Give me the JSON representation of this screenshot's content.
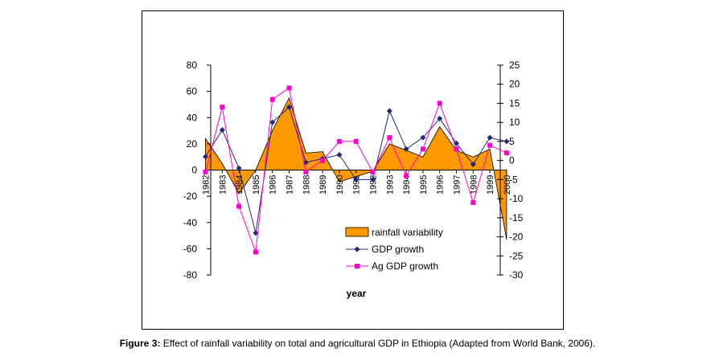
{
  "chart_data": {
    "type": "area+line",
    "categories": [
      "1982",
      "1983",
      "1984",
      "1985",
      "1986",
      "1987",
      "1988",
      "1989",
      "1990",
      "1991",
      "1992",
      "1993",
      "1994",
      "1995",
      "1996",
      "1997",
      "1998",
      "1999",
      "2000"
    ],
    "series": [
      {
        "name": "rainfall variability",
        "type": "area",
        "axis": "left",
        "color": "#ff9900",
        "values": [
          24,
          5,
          -18,
          0,
          30,
          55,
          13,
          14,
          -9,
          -5,
          -1,
          20,
          15,
          10,
          33,
          15,
          10,
          16,
          -53
        ]
      },
      {
        "name": "GDP growth",
        "type": "line",
        "axis": "right",
        "color": "#1f2a78",
        "values": [
          1,
          8,
          -2,
          -19,
          10,
          14,
          -0.5,
          0.5,
          1.5,
          -5,
          -5,
          13,
          3,
          6,
          11,
          4.5,
          -1,
          6,
          5
        ]
      },
      {
        "name": "Ag GDP growth",
        "type": "line",
        "axis": "right",
        "color": "#ff00cc",
        "values": [
          -3,
          14,
          -12,
          -24,
          16,
          19,
          -3,
          0,
          5,
          5,
          -3,
          6,
          -4,
          3,
          15,
          3,
          -11,
          4,
          2
        ]
      }
    ],
    "y_left": {
      "min": -80,
      "max": 80,
      "ticks": [
        80,
        60,
        40,
        20,
        0,
        -20,
        -40,
        -60,
        -80
      ]
    },
    "y_right": {
      "min": -30,
      "max": 25,
      "ticks": [
        25,
        20,
        15,
        10,
        5,
        0,
        -5,
        -10,
        -15,
        -20,
        -25,
        -30
      ]
    },
    "xlabel": "year",
    "legend_position": "bottom-center-right"
  },
  "caption": {
    "label": "Figure 3:",
    "text": " Effect of rainfall variability on total and agricultural GDP in Ethiopia (Adapted from World Bank, 2006)."
  }
}
